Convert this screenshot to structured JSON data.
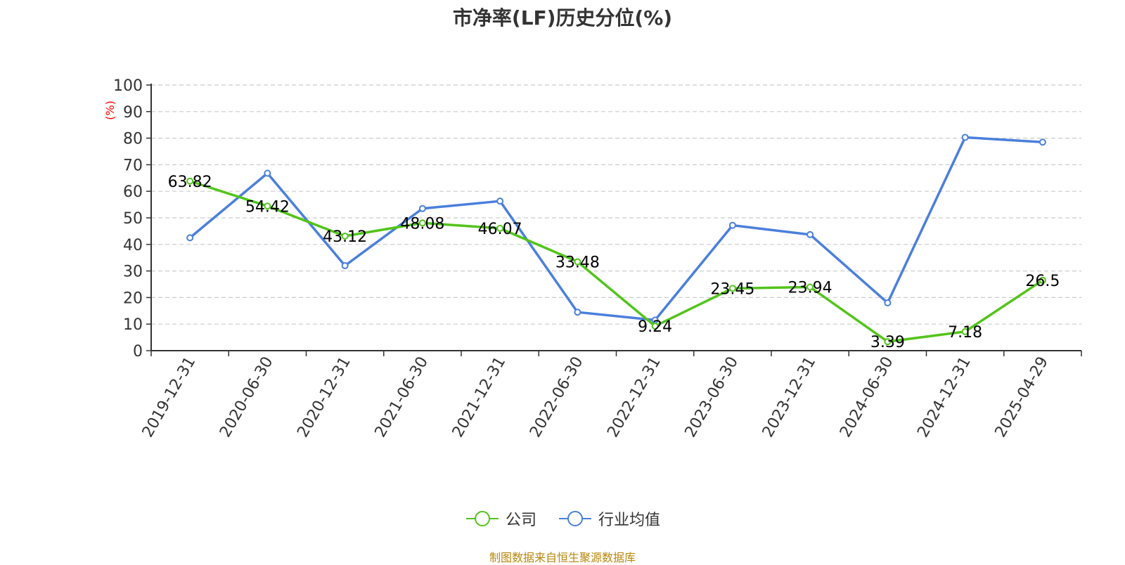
{
  "chart_data": {
    "type": "line",
    "title": "市净率(LF)历史分位(%)",
    "ylabel": "(%)",
    "ylim": [
      0,
      100
    ],
    "yticks": [
      0,
      10,
      20,
      30,
      40,
      50,
      60,
      70,
      80,
      90,
      100
    ],
    "grid": true,
    "legend_position": "bottom-center",
    "categories": [
      "2019-12-31",
      "2020-06-30",
      "2020-12-31",
      "2021-06-30",
      "2021-12-31",
      "2022-06-30",
      "2022-12-31",
      "2023-06-30",
      "2023-12-31",
      "2024-06-30",
      "2024-12-31",
      "2025-04-29"
    ],
    "series": [
      {
        "name": "公司",
        "color": "#52c41a",
        "show_labels": true,
        "values": [
          63.82,
          54.42,
          43.12,
          48.08,
          46.07,
          33.48,
          9.24,
          23.45,
          23.94,
          3.39,
          7.18,
          26.5
        ]
      },
      {
        "name": "行业均值",
        "color": "#4a7fdc",
        "show_labels": false,
        "values": [
          42.5,
          66.8,
          32.0,
          53.5,
          56.3,
          14.5,
          11.5,
          47.2,
          43.7,
          18.0,
          80.3,
          78.5
        ]
      }
    ]
  },
  "source_note": "制图数据来自恒生聚源数据库",
  "colors": {
    "axis": "#333333",
    "grid": "#cccccc",
    "ylabel": "#ff0000",
    "source": "#b8860b"
  }
}
